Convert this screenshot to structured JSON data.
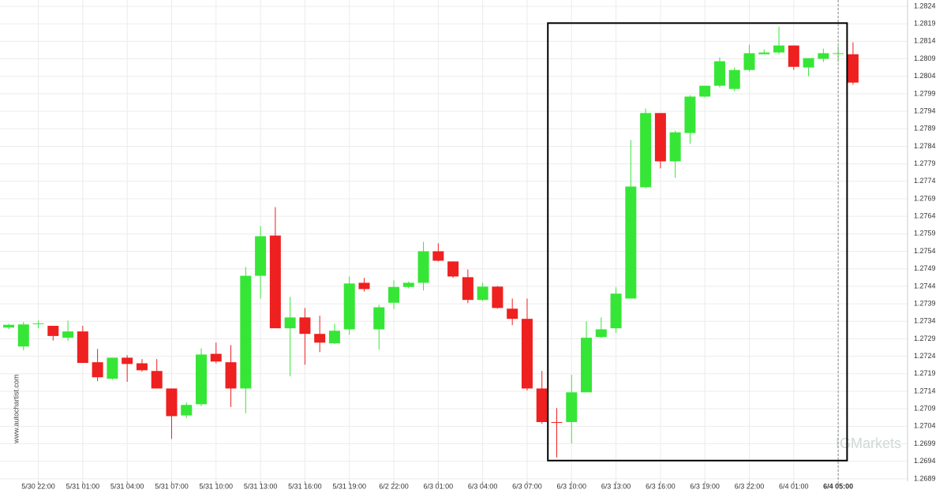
{
  "chart_data": {
    "type": "candlestick",
    "categories": [
      null,
      null,
      "5/30 22:00",
      null,
      null,
      "5/31 01:00",
      null,
      null,
      "5/31 04:00",
      null,
      null,
      "5/31 07:00",
      null,
      null,
      "5/31 10:00",
      null,
      null,
      "5/31 13:00",
      null,
      null,
      "5/31 16:00",
      null,
      null,
      "5/31 19:00",
      null,
      null,
      "6/2 22:00",
      null,
      null,
      "6/3 01:00",
      null,
      null,
      "6/3 04:00",
      null,
      null,
      "6/3 07:00",
      null,
      null,
      "6/3 10:00",
      null,
      null,
      "6/3 13:00",
      null,
      null,
      "6/3 16:00",
      null,
      null,
      "6/3 19:00",
      null,
      null,
      "6/3 22:00",
      null,
      null,
      "6/4 01:00",
      null,
      null,
      "6/4 05:00",
      null
    ],
    "open": [
      1.27322,
      1.27268,
      1.27333,
      1.27327,
      1.27293,
      1.27311,
      1.27223,
      1.27176,
      1.27236,
      1.2722,
      1.27198,
      1.27148,
      1.27071,
      1.27103,
      1.27247,
      1.27223,
      1.27148,
      1.2747,
      1.27585,
      1.2732,
      1.27351,
      1.27304,
      1.27277,
      1.27317,
      1.2745,
      1.27317,
      1.27393,
      1.27438,
      1.2745,
      1.2754,
      1.27511,
      1.27466,
      1.27401,
      1.27439,
      1.27376,
      1.27347,
      1.27148,
      1.27052,
      1.27052,
      1.27137,
      1.27295,
      1.2732,
      1.27405,
      1.27723,
      1.27935,
      1.27797,
      1.27878,
      1.27982,
      1.28013,
      1.28004,
      1.28058,
      1.28103,
      1.28108,
      1.28128,
      1.28065,
      1.2809,
      1.28106,
      1.28103
    ],
    "high": [
      1.27333,
      1.27338,
      1.27342,
      1.27327,
      1.27342,
      1.27327,
      1.27261,
      1.27236,
      1.27243,
      1.27232,
      1.27232,
      1.27148,
      1.27108,
      1.27263,
      1.27279,
      1.27272,
      1.27495,
      1.27612,
      1.27666,
      1.2741,
      1.27378,
      1.27356,
      1.27333,
      1.27468,
      1.27464,
      1.27387,
      1.27457,
      1.27454,
      1.27567,
      1.27563,
      1.27511,
      1.27488,
      1.2745,
      1.27441,
      1.27405,
      1.27405,
      1.27198,
      1.27092,
      1.27187,
      1.2734,
      1.27351,
      1.27437,
      1.27858,
      1.27948,
      1.27935,
      1.27885,
      1.27986,
      1.28013,
      1.28094,
      1.28065,
      1.2813,
      1.28117,
      1.28182,
      1.28128,
      1.28092,
      1.28119,
      1.28126,
      1.28137
    ],
    "low": [
      1.27318,
      1.27257,
      1.2732,
      1.27285,
      1.27284,
      1.27221,
      1.27169,
      1.27173,
      1.27167,
      1.27196,
      1.27148,
      1.27004,
      1.27063,
      1.27097,
      1.2722,
      1.27095,
      1.27077,
      1.27405,
      1.2732,
      1.27183,
      1.27216,
      1.27252,
      1.27275,
      1.27302,
      1.27425,
      1.27259,
      1.27375,
      1.27434,
      1.27428,
      1.27511,
      1.27464,
      1.27392,
      1.27398,
      1.27376,
      1.27329,
      1.27142,
      1.27047,
      1.26951,
      1.26991,
      1.27137,
      1.27293,
      1.27307,
      1.27405,
      1.2772,
      1.27777,
      1.2775,
      1.27847,
      1.2798,
      1.28008,
      1.27997,
      1.28054,
      1.28103,
      1.28103,
      1.28058,
      1.2804,
      1.28081,
      1.28081,
      1.28016
    ],
    "close": [
      1.2733,
      1.27331,
      1.27334,
      1.27298,
      1.27311,
      1.27221,
      1.2718,
      1.27236,
      1.27218,
      1.272,
      1.27148,
      1.27069,
      1.27101,
      1.27245,
      1.27225,
      1.27148,
      1.2747,
      1.27583,
      1.2732,
      1.27351,
      1.27304,
      1.27279,
      1.27313,
      1.27448,
      1.27432,
      1.2738,
      1.27438,
      1.2745,
      1.2754,
      1.27513,
      1.27468,
      1.27401,
      1.27439,
      1.27378,
      1.27347,
      1.27148,
      1.27052,
      1.27051,
      1.27137,
      1.27293,
      1.27317,
      1.27419,
      1.27725,
      1.27935,
      1.27797,
      1.2788,
      1.27982,
      1.28013,
      1.28083,
      1.28058,
      1.28106,
      1.28108,
      1.28128,
      1.28067,
      1.28092,
      1.28106,
      1.28106,
      1.28022
    ],
    "up_color": "#36e636",
    "down_color": "#ee2020",
    "ylim": [
      1.26883,
      1.28258
    ],
    "yticks": [
      1.2689,
      1.2694,
      1.2699,
      1.2704,
      1.2709,
      1.2714,
      1.2719,
      1.2724,
      1.2729,
      1.2734,
      1.2739,
      1.2744,
      1.2749,
      1.2754,
      1.2759,
      1.2764,
      1.2769,
      1.2774,
      1.2779,
      1.2784,
      1.2789,
      1.2794,
      1.2799,
      1.2804,
      1.2809,
      1.2814,
      1.2819,
      1.2824
    ],
    "grid": true,
    "pattern_box": {
      "x_range": [
        36.4,
        56.6
      ],
      "y_range": [
        1.26942,
        1.28192
      ]
    },
    "current_index": 56,
    "watermark": "www.autochartist.com",
    "logo": "IGMarkets"
  }
}
